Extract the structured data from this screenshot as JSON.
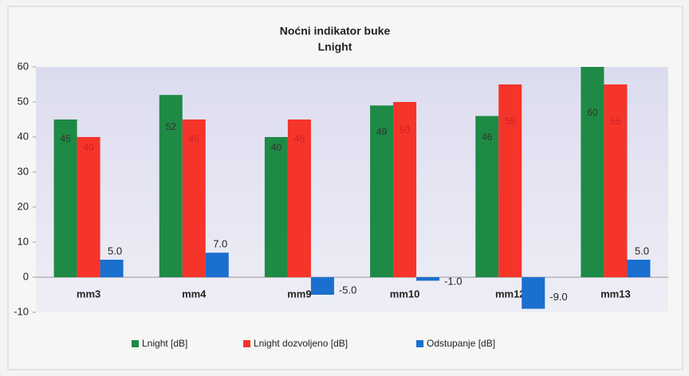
{
  "chart_data": {
    "type": "bar",
    "title": "Noćni indikator buke",
    "subtitle": "Lnight",
    "categories": [
      "mm3",
      "mm4",
      "mm9",
      "mm10",
      "mm12",
      "mm13"
    ],
    "series": [
      {
        "name": "Lnight [dB]",
        "color": "#1e8a45",
        "values": [
          45,
          52,
          40,
          49,
          46,
          60
        ]
      },
      {
        "name": "Lnight dozvoljeno [dB]",
        "color": "#f5342a",
        "values": [
          40,
          45,
          45,
          50,
          55,
          55
        ]
      },
      {
        "name": "Odstupanje [dB]",
        "color": "#1a6fcf",
        "values": [
          5,
          7,
          -5,
          -1,
          -9,
          5
        ],
        "value_labels": [
          "5.0",
          "7.0",
          "-5.0",
          "-1.0",
          "-9.0",
          "5.0"
        ]
      }
    ],
    "ylim": [
      -10,
      60
    ],
    "yticks": [
      -10,
      0,
      10,
      20,
      30,
      40,
      50,
      60
    ],
    "grid": false,
    "legend": "bottom"
  }
}
